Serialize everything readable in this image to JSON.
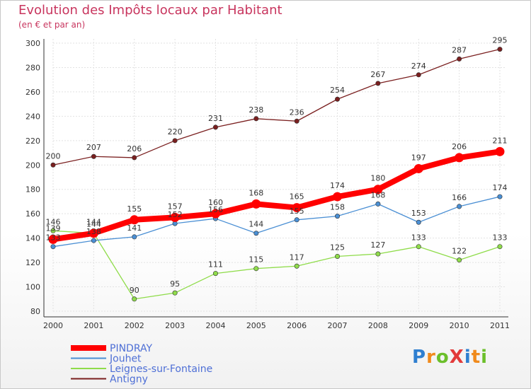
{
  "chart_data": {
    "type": "line",
    "title": "Evolution des Impôts locaux par Habitant",
    "subtitle": "(en € et par an)",
    "x": [
      "2000",
      "2001",
      "2002",
      "2003",
      "2004",
      "2005",
      "2006",
      "2007",
      "2008",
      "2009",
      "2010",
      "2011"
    ],
    "ylim": [
      80,
      300
    ],
    "yticks": [
      80,
      100,
      120,
      140,
      160,
      180,
      200,
      220,
      240,
      260,
      280,
      300
    ],
    "grid": true,
    "legend_position": "bottom-left",
    "series": [
      {
        "name": "PINDRAY",
        "color": "#ff0000",
        "highlight": true,
        "values": [
          139,
          144,
          155,
          157,
          160,
          168,
          165,
          174,
          180,
          197,
          206,
          211
        ]
      },
      {
        "name": "Jouhet",
        "color": "#4a8fd4",
        "values": [
          133,
          138,
          141,
          152,
          156,
          144,
          155,
          158,
          168,
          153,
          166,
          174
        ]
      },
      {
        "name": "Leignes-sur-Fontaine",
        "color": "#8fdc4a",
        "values": [
          146,
          144,
          90,
          95,
          111,
          115,
          117,
          125,
          127,
          133,
          122,
          133
        ]
      },
      {
        "name": "Antigny",
        "color": "#7a1f1f",
        "values": [
          200,
          207,
          206,
          220,
          231,
          238,
          236,
          254,
          267,
          274,
          287,
          295
        ]
      }
    ]
  }
}
